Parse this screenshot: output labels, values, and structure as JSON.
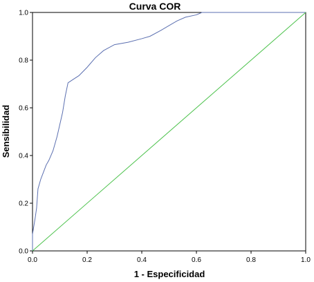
{
  "chart_data": {
    "type": "line",
    "title": "Curva COR",
    "xlabel": "1 - Especificidad",
    "ylabel": "Sensibilidad",
    "xlim": [
      0.0,
      1.0
    ],
    "ylim": [
      0.0,
      1.0
    ],
    "x_ticks": [
      "0.0",
      "0.2",
      "0.4",
      "0.6",
      "0.8",
      "1.0"
    ],
    "y_ticks": [
      "0.0",
      "0.2",
      "0.4",
      "0.6",
      "0.8",
      "1.0"
    ],
    "grid": false,
    "legend": "none",
    "series": [
      {
        "color": "#5b6fb0",
        "points": [
          [
            0.0,
            0.0
          ],
          [
            0.0,
            0.07
          ],
          [
            0.01,
            0.14
          ],
          [
            0.015,
            0.18
          ],
          [
            0.02,
            0.26
          ],
          [
            0.03,
            0.3
          ],
          [
            0.04,
            0.33
          ],
          [
            0.05,
            0.36
          ],
          [
            0.06,
            0.38
          ],
          [
            0.075,
            0.42
          ],
          [
            0.09,
            0.48
          ],
          [
            0.11,
            0.58
          ],
          [
            0.12,
            0.65
          ],
          [
            0.13,
            0.705
          ],
          [
            0.15,
            0.72
          ],
          [
            0.17,
            0.735
          ],
          [
            0.2,
            0.77
          ],
          [
            0.23,
            0.81
          ],
          [
            0.26,
            0.84
          ],
          [
            0.3,
            0.865
          ],
          [
            0.35,
            0.875
          ],
          [
            0.4,
            0.89
          ],
          [
            0.43,
            0.9
          ],
          [
            0.47,
            0.925
          ],
          [
            0.5,
            0.945
          ],
          [
            0.53,
            0.965
          ],
          [
            0.56,
            0.98
          ],
          [
            0.6,
            0.99
          ],
          [
            0.62,
            1.0
          ],
          [
            0.7,
            1.0
          ],
          [
            0.85,
            1.0
          ],
          [
            1.0,
            1.0
          ]
        ]
      },
      {
        "color": "#4cc24c",
        "points": [
          [
            0.0,
            0.0
          ],
          [
            1.0,
            1.0
          ]
        ]
      }
    ]
  }
}
